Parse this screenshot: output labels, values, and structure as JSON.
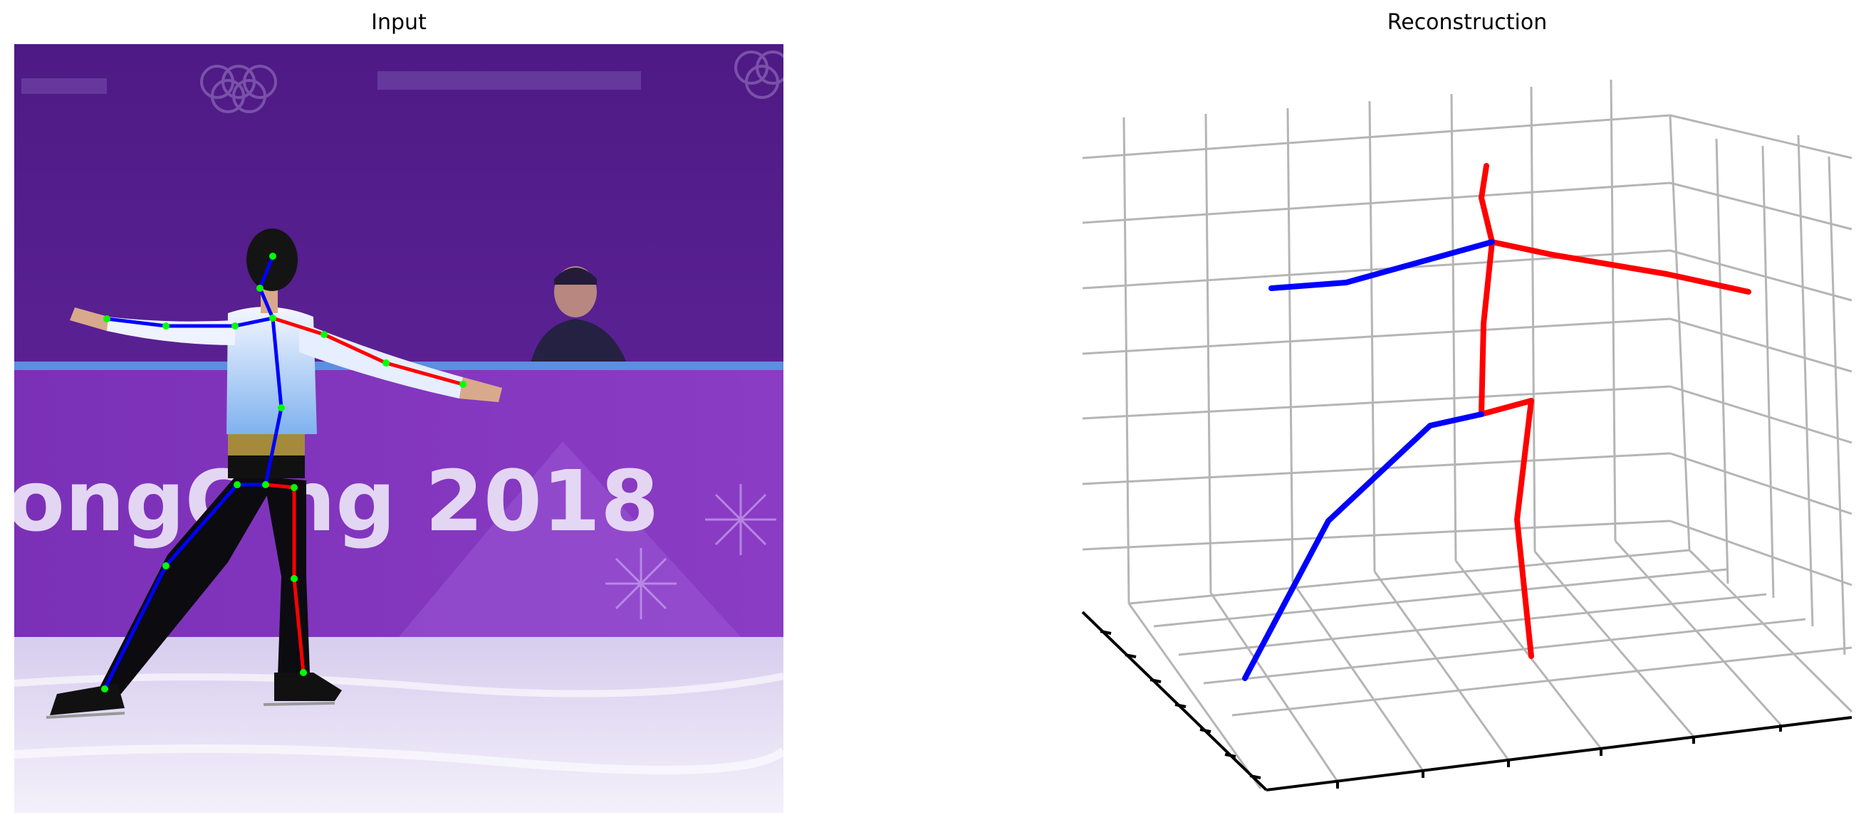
{
  "figure": {
    "panels": [
      {
        "title": "Input"
      },
      {
        "title": "Reconstruction"
      }
    ],
    "photo": {
      "banner_text": "ongC    ng 2018"
    },
    "colors": {
      "left_limbs": "#0000ff",
      "right_limbs": "#ff0000",
      "keypoints": "#00ff00",
      "grid": "#b0b0b0",
      "axis": "#000000",
      "photo_background_top": "#5a1f8f",
      "photo_board": "#7a2fb0",
      "photo_ice": "#e6e1f3"
    }
  }
}
